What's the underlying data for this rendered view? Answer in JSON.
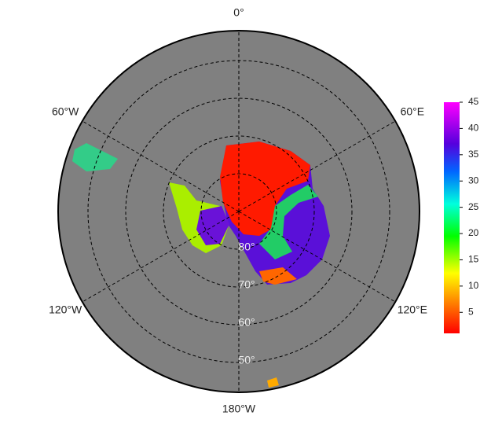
{
  "map": {
    "lon_labels": [
      {
        "value": 0,
        "label": "0°"
      },
      {
        "value": 60,
        "label": "60°E"
      },
      {
        "value": 120,
        "label": "120°E"
      },
      {
        "value": 180,
        "label": "180°W"
      },
      {
        "value": -120,
        "label": "120°W"
      },
      {
        "value": -60,
        "label": "60°W"
      }
    ],
    "lat_labels": [
      {
        "value": 80,
        "label": "80°"
      },
      {
        "value": 70,
        "label": "70°"
      },
      {
        "value": 60,
        "label": "60°"
      },
      {
        "value": 50,
        "label": "50°"
      }
    ],
    "colorbar": {
      "lim": [
        1,
        45
      ],
      "ticks": [
        5,
        10,
        15,
        20,
        25,
        30,
        35,
        40,
        45
      ]
    }
  }
}
